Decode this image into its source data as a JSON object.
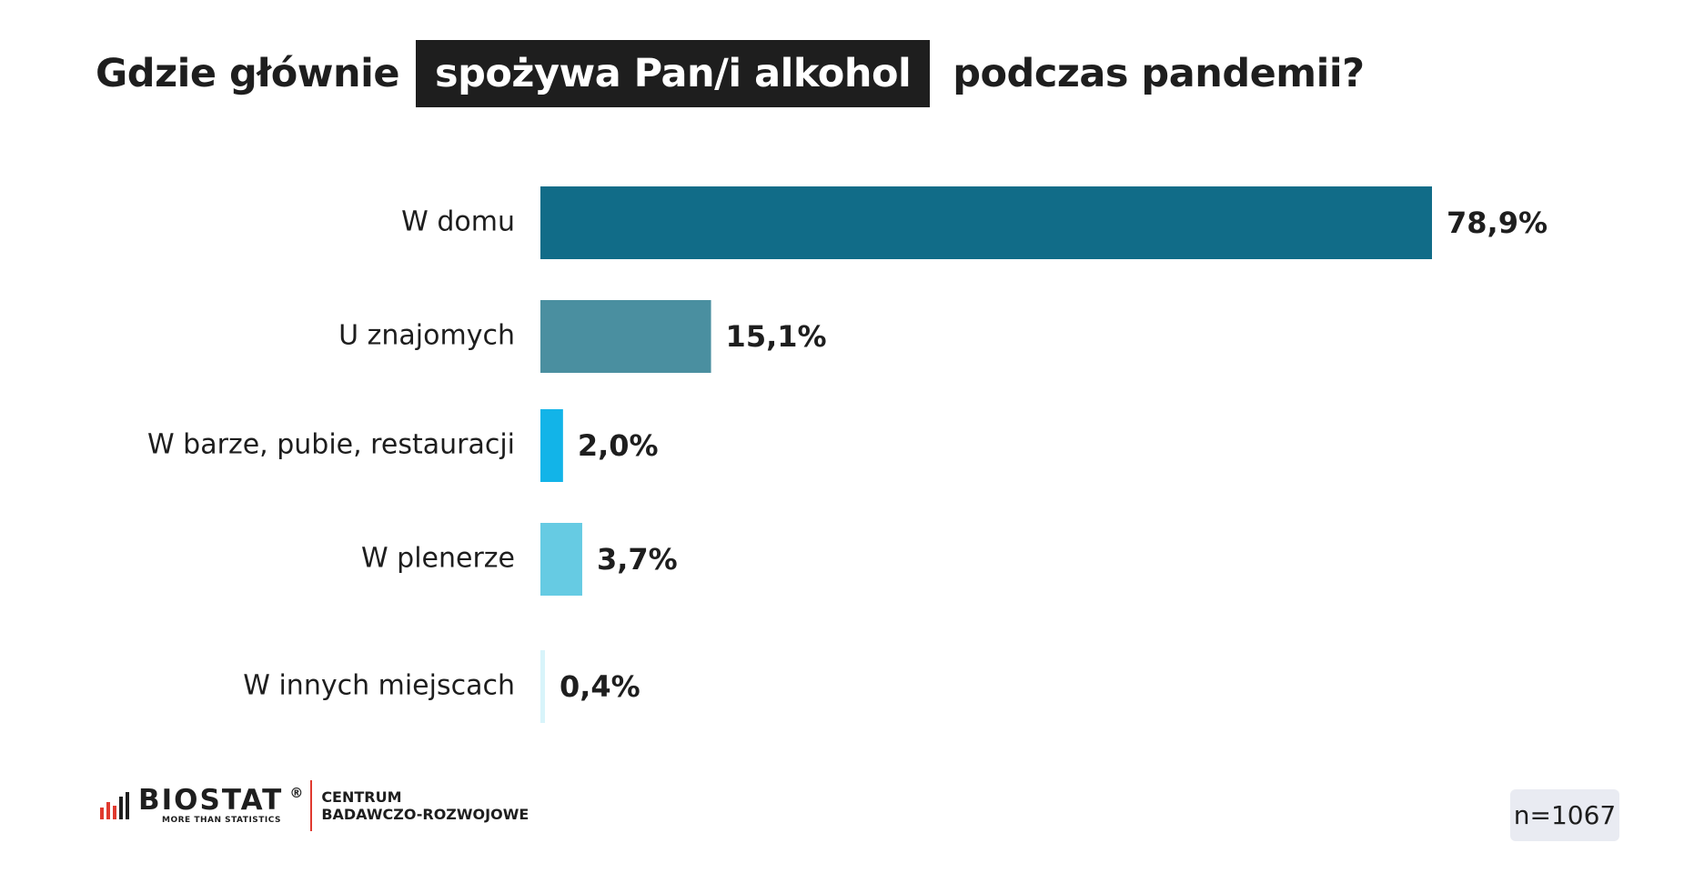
{
  "title": {
    "before": "Gdzie głównie",
    "highlight": "spożywa Pan/i alkohol",
    "after": "podczas pandemii?"
  },
  "chart_data": {
    "type": "bar",
    "orientation": "horizontal",
    "categories": [
      "W domu",
      "U znajomych",
      "W barze, pubie, restauracji",
      "W plenerze",
      "W innych miejscach"
    ],
    "values": [
      78.9,
      15.1,
      2.0,
      3.7,
      0.4
    ],
    "value_labels": [
      "78,9%",
      "15,1%",
      "2,0%",
      "3,7%",
      "0,4%"
    ],
    "colors": [
      "#116c88",
      "#4a8fa0",
      "#12b4e8",
      "#66cbe3",
      "#d8f4fa"
    ],
    "xlim": [
      0,
      78.9
    ],
    "grid": false,
    "legend": "none"
  },
  "footer": {
    "brand": "BIOSTAT",
    "registered": "®",
    "tagline": "MORE THAN STATISTICS",
    "center_line1": "CENTRUM",
    "center_line2": "BADAWCZO-ROZWOJOWE",
    "sample": "n=1067"
  }
}
